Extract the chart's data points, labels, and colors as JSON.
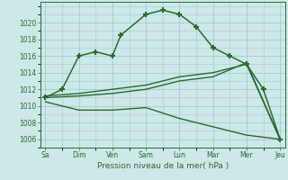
{
  "xlabel": "Pression niveau de la mer( hPa )",
  "bg_color": "#cce8e8",
  "line_color": "#2d6a2d",
  "grid_color": "#a8cccc",
  "ylim": [
    1005,
    1022.5
  ],
  "yticks": [
    1006,
    1008,
    1010,
    1012,
    1014,
    1016,
    1018,
    1020
  ],
  "xtick_labels": [
    "Sa",
    "Dim",
    "Ven",
    "Sam",
    "Lun",
    "Mar",
    "Mer",
    "Jeu"
  ],
  "x_positions": [
    0,
    1,
    2,
    3,
    4,
    5,
    6,
    7
  ],
  "xlim": [
    -0.15,
    7.15
  ],
  "series": [
    {
      "x": [
        0,
        0.5,
        1,
        1.5,
        2,
        2.25,
        3,
        3.5,
        4,
        4.5,
        5,
        5.5,
        6,
        6.5,
        7
      ],
      "y": [
        1011,
        1012,
        1016,
        1016.5,
        1016,
        1018.5,
        1021,
        1021.5,
        1021,
        1019.5,
        1017,
        1016,
        1015,
        1012,
        1006
      ],
      "marker": "+",
      "markersize": 4,
      "linewidth": 1.1,
      "linestyle": "-"
    },
    {
      "x": [
        0,
        1,
        2,
        3,
        4,
        5,
        6,
        7
      ],
      "y": [
        1011.2,
        1011.5,
        1012.0,
        1012.5,
        1013.5,
        1014.0,
        1015.0,
        1006.0
      ],
      "marker": null,
      "markersize": 0,
      "linewidth": 1.0,
      "linestyle": "-"
    },
    {
      "x": [
        0,
        1,
        2,
        3,
        4,
        5,
        6,
        7
      ],
      "y": [
        1011.0,
        1011.2,
        1011.5,
        1012.0,
        1013.0,
        1013.5,
        1015.2,
        1006.0
      ],
      "marker": null,
      "markersize": 0,
      "linewidth": 1.0,
      "linestyle": "-"
    },
    {
      "x": [
        0,
        1,
        2,
        3,
        4,
        5,
        6,
        7
      ],
      "y": [
        1010.5,
        1009.5,
        1009.5,
        1009.8,
        1008.5,
        1007.5,
        1006.5,
        1006.0
      ],
      "marker": null,
      "markersize": 0,
      "linewidth": 1.0,
      "linestyle": "-"
    }
  ]
}
